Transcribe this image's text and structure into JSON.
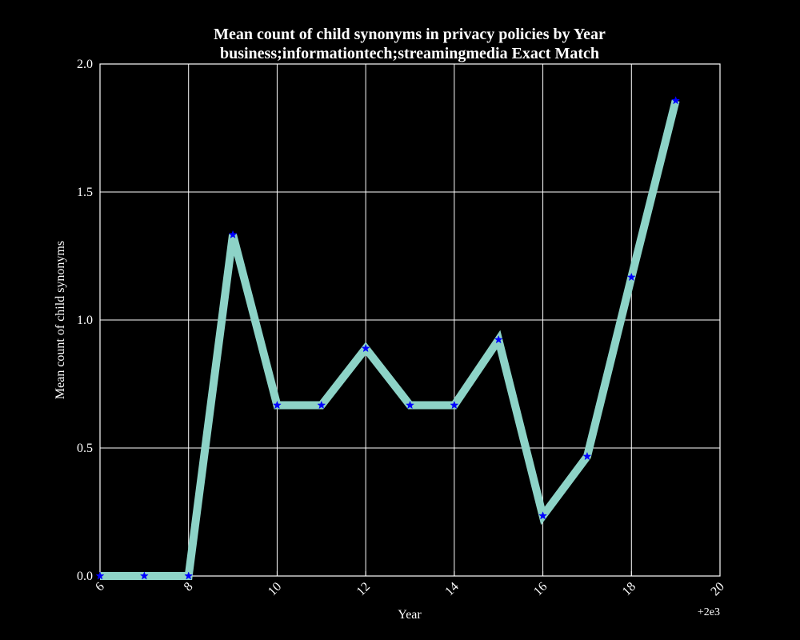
{
  "chart_data": {
    "type": "line",
    "title": "Mean count of child synonyms in privacy policies by Year",
    "subtitle": "business;informationtech;streamingmedia Exact Match",
    "xlabel": "Year",
    "ylabel": "Mean count of child synonyms",
    "x_offset_label": "+2e3",
    "x": [
      2006,
      2007,
      2008,
      2009,
      2010,
      2011,
      2012,
      2013,
      2014,
      2015,
      2016,
      2017,
      2018,
      2019
    ],
    "values": [
      0.0,
      0.0,
      0.0,
      1.333,
      0.667,
      0.667,
      0.889,
      0.667,
      0.667,
      0.923,
      0.235,
      0.467,
      1.167,
      1.857
    ],
    "xlim": [
      2006,
      2020
    ],
    "ylim": [
      0.0,
      2.0
    ],
    "x_ticks": [
      2006,
      2008,
      2010,
      2012,
      2014,
      2016,
      2018,
      2020
    ],
    "x_tick_labels": [
      "6",
      "8",
      "10",
      "12",
      "14",
      "16",
      "18",
      "20"
    ],
    "y_ticks": [
      0.0,
      0.5,
      1.0,
      1.5,
      2.0
    ],
    "y_tick_labels": [
      "0.0",
      "0.5",
      "1.0",
      "1.5",
      "2.0"
    ],
    "grid": true,
    "marker": "star",
    "colors": {
      "background": "#000000",
      "line": "#8dd3c7",
      "marker": "#0000ff",
      "grid": "#ffffff",
      "text": "#ffffff"
    }
  }
}
